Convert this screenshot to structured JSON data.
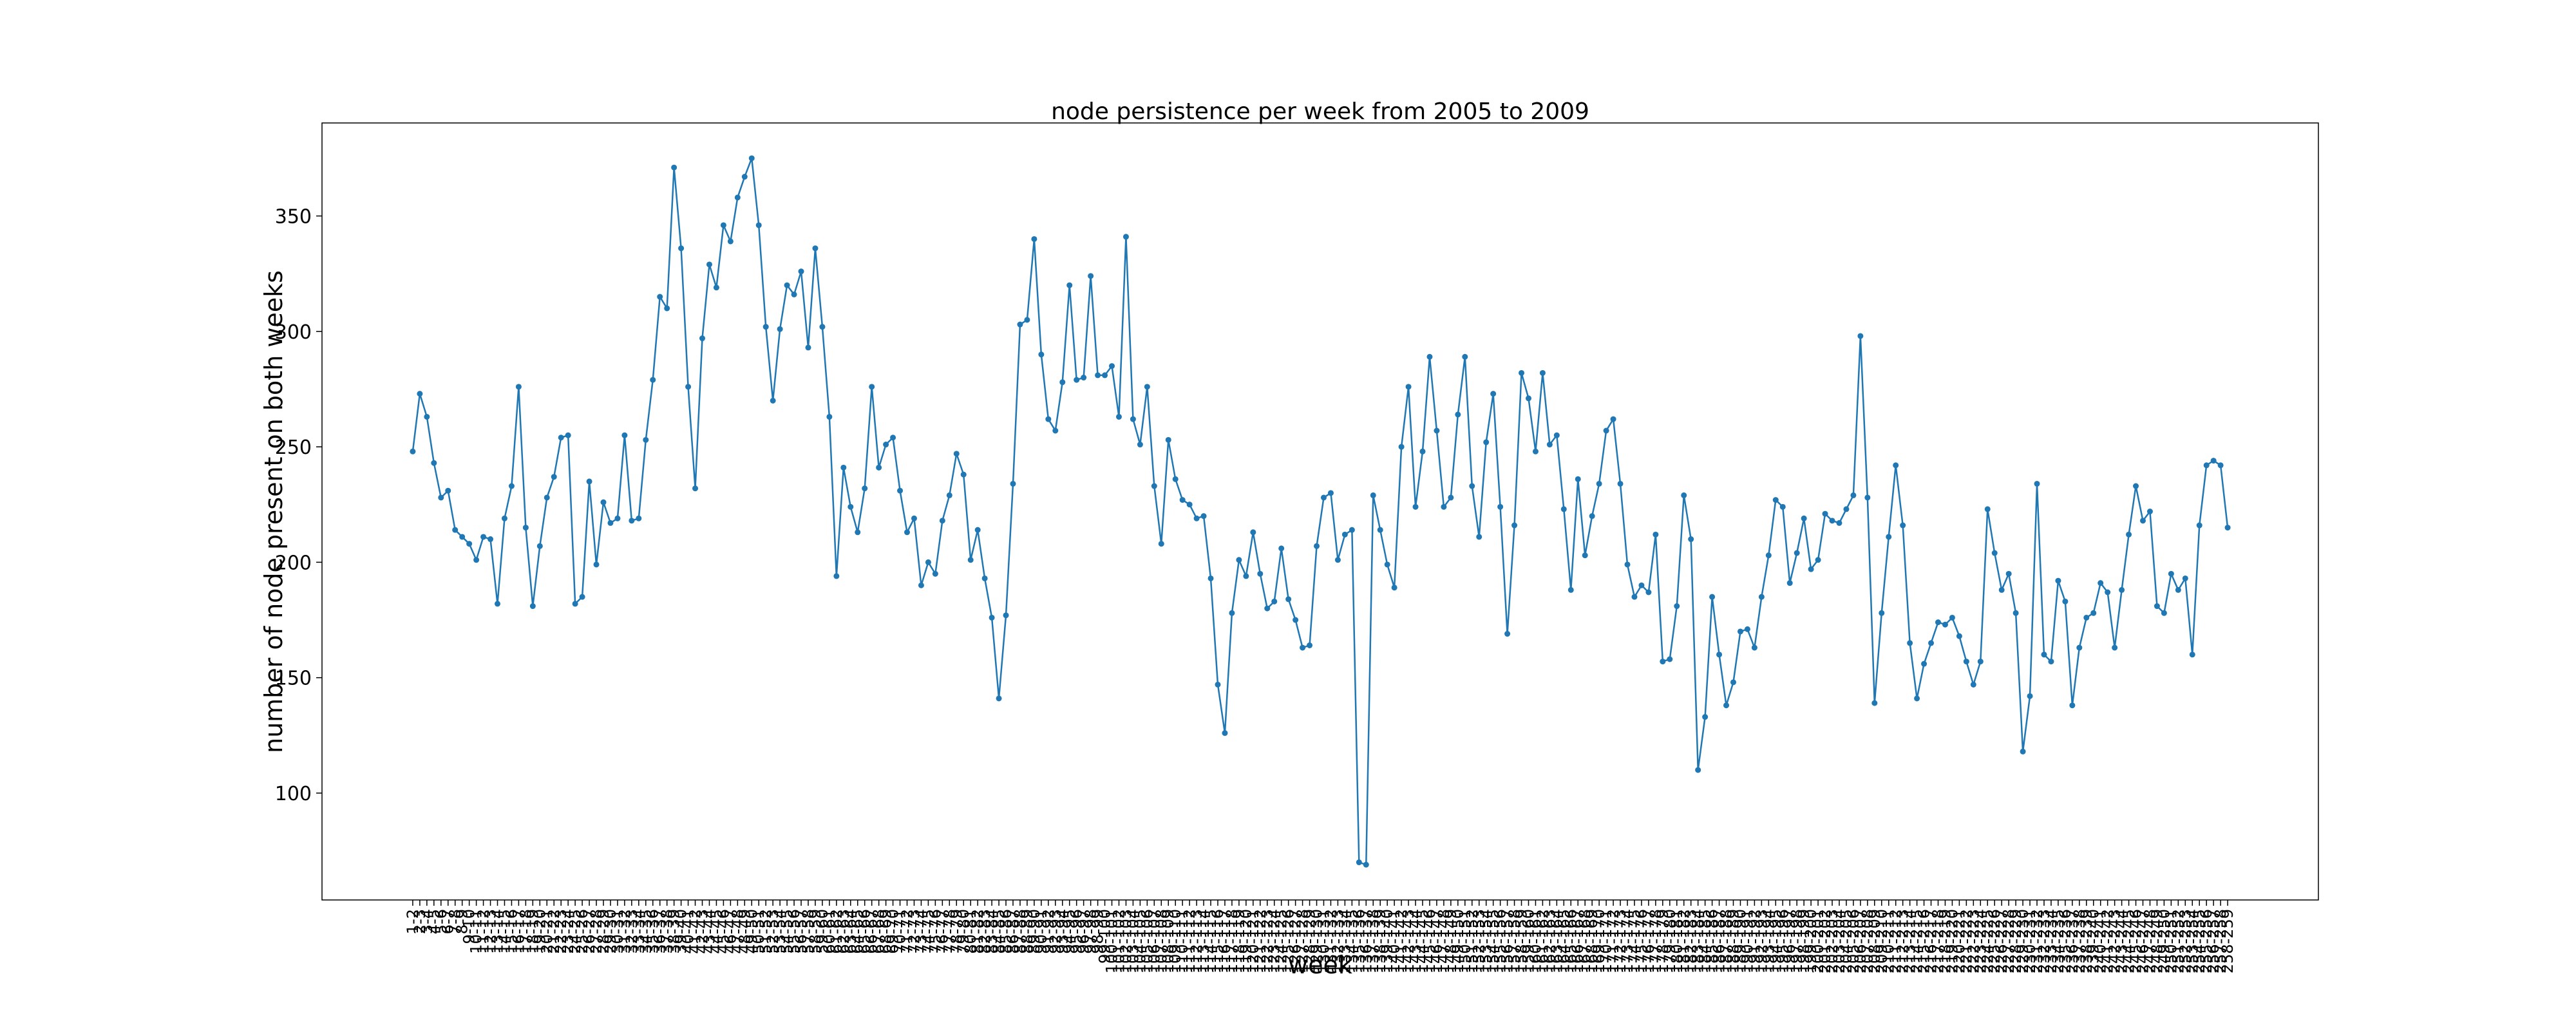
{
  "chart_data": {
    "type": "line",
    "title": "node persistence per week from 2005 to 2009",
    "xlabel": "week",
    "ylabel": "number of node present on both weeks",
    "categories": [
      "1-2",
      "2-3",
      "3-4",
      "4-5",
      "5-6",
      "6-7",
      "7-8",
      "8-9",
      "9-10",
      "10-11",
      "11-12",
      "12-13",
      "13-14",
      "14-15",
      "15-16",
      "16-17",
      "17-18",
      "18-19",
      "19-20",
      "20-21",
      "21-22",
      "22-23",
      "23-24",
      "24-25",
      "25-26",
      "26-27",
      "27-28",
      "28-29",
      "29-30",
      "30-31",
      "31-32",
      "32-33",
      "33-34",
      "34-35",
      "35-36",
      "36-37",
      "37-38",
      "38-39",
      "39-40",
      "40-41",
      "41-42",
      "42-43",
      "43-44",
      "44-45",
      "45-46",
      "46-47",
      "47-48",
      "48-49",
      "49-50",
      "50-51",
      "51-52",
      "52-53",
      "53-54",
      "54-55",
      "55-56",
      "56-57",
      "57-58",
      "58-59",
      "59-60",
      "60-61",
      "61-62",
      "62-63",
      "63-64",
      "64-65",
      "65-66",
      "66-67",
      "67-68",
      "68-69",
      "69-70",
      "70-71",
      "71-72",
      "72-73",
      "73-74",
      "74-75",
      "75-76",
      "76-77",
      "77-78",
      "78-79",
      "79-80",
      "80-81",
      "81-82",
      "82-83",
      "83-84",
      "84-85",
      "85-86",
      "86-87",
      "87-88",
      "88-89",
      "89-90",
      "90-91",
      "91-92",
      "92-93",
      "93-94",
      "94-95",
      "95-96",
      "96-97",
      "97-98",
      "98-99",
      "99-100",
      "100-101",
      "101-102",
      "102-103",
      "103-104",
      "104-105",
      "105-106",
      "106-107",
      "107-108",
      "108-109",
      "109-110",
      "110-111",
      "111-112",
      "112-113",
      "113-114",
      "114-115",
      "115-116",
      "116-117",
      "117-118",
      "118-119",
      "119-120",
      "120-121",
      "121-122",
      "122-123",
      "123-124",
      "124-125",
      "125-126",
      "126-127",
      "127-128",
      "128-129",
      "129-130",
      "130-131",
      "131-132",
      "132-133",
      "133-134",
      "134-135",
      "135-136",
      "136-137",
      "137-138",
      "138-139",
      "139-140",
      "140-141",
      "141-142",
      "142-143",
      "143-144",
      "144-145",
      "145-146",
      "146-147",
      "147-148",
      "148-149",
      "149-150",
      "150-151",
      "151-152",
      "152-153",
      "153-154",
      "154-155",
      "155-156",
      "156-157",
      "157-158",
      "158-159",
      "159-160",
      "160-161",
      "161-162",
      "162-163",
      "163-164",
      "164-165",
      "165-166",
      "166-167",
      "167-168",
      "168-169",
      "169-170",
      "170-171",
      "171-172",
      "172-173",
      "173-174",
      "174-175",
      "175-176",
      "176-177",
      "177-178",
      "178-179",
      "179-180",
      "180-181",
      "181-182",
      "182-183",
      "183-184",
      "184-185",
      "185-186",
      "186-187",
      "187-188",
      "188-189",
      "189-190",
      "190-191",
      "191-192",
      "192-193",
      "193-194",
      "194-195",
      "195-196",
      "196-197",
      "197-198",
      "198-199",
      "199-200",
      "200-201",
      "201-202",
      "202-203",
      "203-204",
      "204-205",
      "205-206",
      "206-207",
      "207-208",
      "208-209",
      "209-210",
      "210-211",
      "211-212",
      "212-213",
      "213-214",
      "214-215",
      "215-216",
      "216-217",
      "217-218",
      "218-219",
      "219-220",
      "220-221",
      "221-222",
      "222-223",
      "223-224",
      "224-225",
      "225-226",
      "226-227",
      "227-228",
      "228-229",
      "229-230",
      "230-231",
      "231-232",
      "232-233",
      "233-234",
      "234-235",
      "235-236",
      "236-237",
      "237-238",
      "238-239",
      "239-240",
      "240-241",
      "241-242",
      "242-243",
      "243-244",
      "244-245",
      "245-246",
      "246-247",
      "247-248",
      "248-249",
      "249-250",
      "250-251",
      "251-252",
      "252-253",
      "253-254",
      "254-255",
      "255-256",
      "256-257",
      "257-258",
      "258-259"
    ],
    "values": [
      248,
      273,
      263,
      243,
      228,
      231,
      214,
      211,
      208,
      201,
      211,
      210,
      182,
      219,
      233,
      276,
      215,
      181,
      207,
      228,
      237,
      254,
      255,
      182,
      185,
      235,
      199,
      226,
      217,
      219,
      255,
      218,
      219,
      253,
      279,
      315,
      310,
      371,
      336,
      276,
      232,
      297,
      329,
      319,
      346,
      339,
      358,
      367,
      375,
      346,
      302,
      270,
      301,
      320,
      316,
      326,
      293,
      336,
      302,
      263,
      194,
      241,
      224,
      213,
      232,
      276,
      241,
      251,
      254,
      231,
      213,
      219,
      190,
      200,
      195,
      218,
      229,
      247,
      238,
      201,
      214,
      193,
      176,
      141,
      177,
      234,
      303,
      305,
      340,
      290,
      262,
      257,
      278,
      320,
      279,
      280,
      324,
      281,
      281,
      285,
      263,
      341,
      262,
      251,
      276,
      233,
      208,
      253,
      236,
      227,
      225,
      219,
      220,
      193,
      147,
      126,
      178,
      201,
      194,
      213,
      195,
      180,
      183,
      206,
      184,
      175,
      163,
      164,
      207,
      228,
      230,
      201,
      212,
      214,
      70,
      69,
      229,
      214,
      199,
      189,
      250,
      276,
      224,
      248,
      289,
      257,
      224,
      228,
      264,
      289,
      233,
      211,
      252,
      273,
      224,
      169,
      216,
      282,
      271,
      248,
      282,
      251,
      255,
      223,
      188,
      236,
      203,
      220,
      234,
      257,
      262,
      234,
      199,
      185,
      190,
      187,
      212,
      157,
      158,
      181,
      229,
      210,
      110,
      133,
      185,
      160,
      138,
      148,
      170,
      171,
      163,
      185,
      203,
      227,
      224,
      191,
      204,
      219,
      197,
      201,
      221,
      218,
      217,
      223,
      229,
      298,
      228,
      139,
      178,
      211,
      242,
      216,
      165,
      141,
      156,
      165,
      174,
      173,
      176,
      168,
      157,
      147,
      157,
      223,
      204,
      188,
      195,
      178,
      118,
      142,
      234,
      160,
      157,
      192,
      183,
      138,
      163,
      176,
      178,
      191,
      187,
      163,
      188,
      212,
      233,
      218,
      222,
      181,
      178,
      195,
      188,
      193,
      160,
      216,
      242,
      244,
      242,
      215
    ],
    "color": "#1f77b4",
    "ylim": [
      53.7,
      390.3
    ],
    "yticks": [
      100,
      150,
      200,
      250,
      300,
      350
    ]
  }
}
